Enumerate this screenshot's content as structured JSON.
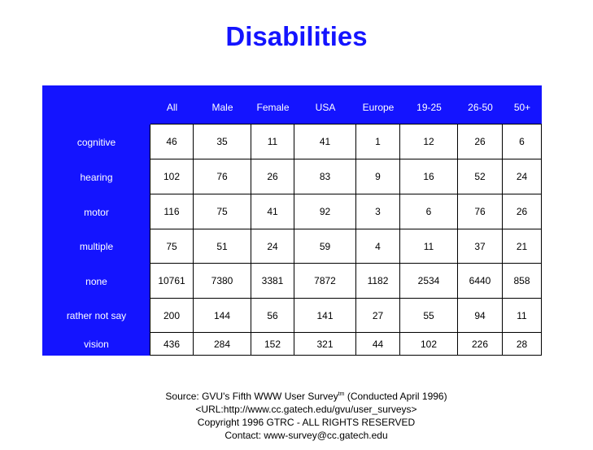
{
  "chart_data": {
    "type": "table",
    "title": "Disabilities",
    "columns": [
      "All",
      "Male",
      "Female",
      "USA",
      "Europe",
      "19-25",
      "26-50",
      "50+"
    ],
    "rows": [
      {
        "label": "cognitive",
        "values": [
          46,
          35,
          11,
          41,
          1,
          12,
          26,
          6
        ]
      },
      {
        "label": "hearing",
        "values": [
          102,
          76,
          26,
          83,
          9,
          16,
          52,
          24
        ]
      },
      {
        "label": "motor",
        "values": [
          116,
          75,
          41,
          92,
          3,
          6,
          76,
          26
        ]
      },
      {
        "label": "multiple",
        "values": [
          75,
          51,
          24,
          59,
          4,
          11,
          37,
          21
        ]
      },
      {
        "label": "none",
        "values": [
          10761,
          7380,
          3381,
          7872,
          1182,
          2534,
          6440,
          858
        ]
      },
      {
        "label": "rather not say",
        "values": [
          200,
          144,
          56,
          141,
          27,
          55,
          94,
          11
        ]
      },
      {
        "label": "vision",
        "values": [
          436,
          284,
          152,
          321,
          44,
          102,
          226,
          28
        ]
      }
    ]
  },
  "footer": {
    "source": "Source: GVU's Fifth WWW User Survey",
    "tm": "tm",
    "conducted": " (Conducted April 1996)",
    "url": "<URL:http://www.cc.gatech.edu/gvu/user_surveys>",
    "copyright": "Copyright 1996 GTRC -  ALL RIGHTS RESERVED",
    "contact": "Contact: www-survey@cc.gatech.edu"
  },
  "colors": {
    "header_bg": "#1414ff",
    "title": "#1414ff"
  }
}
